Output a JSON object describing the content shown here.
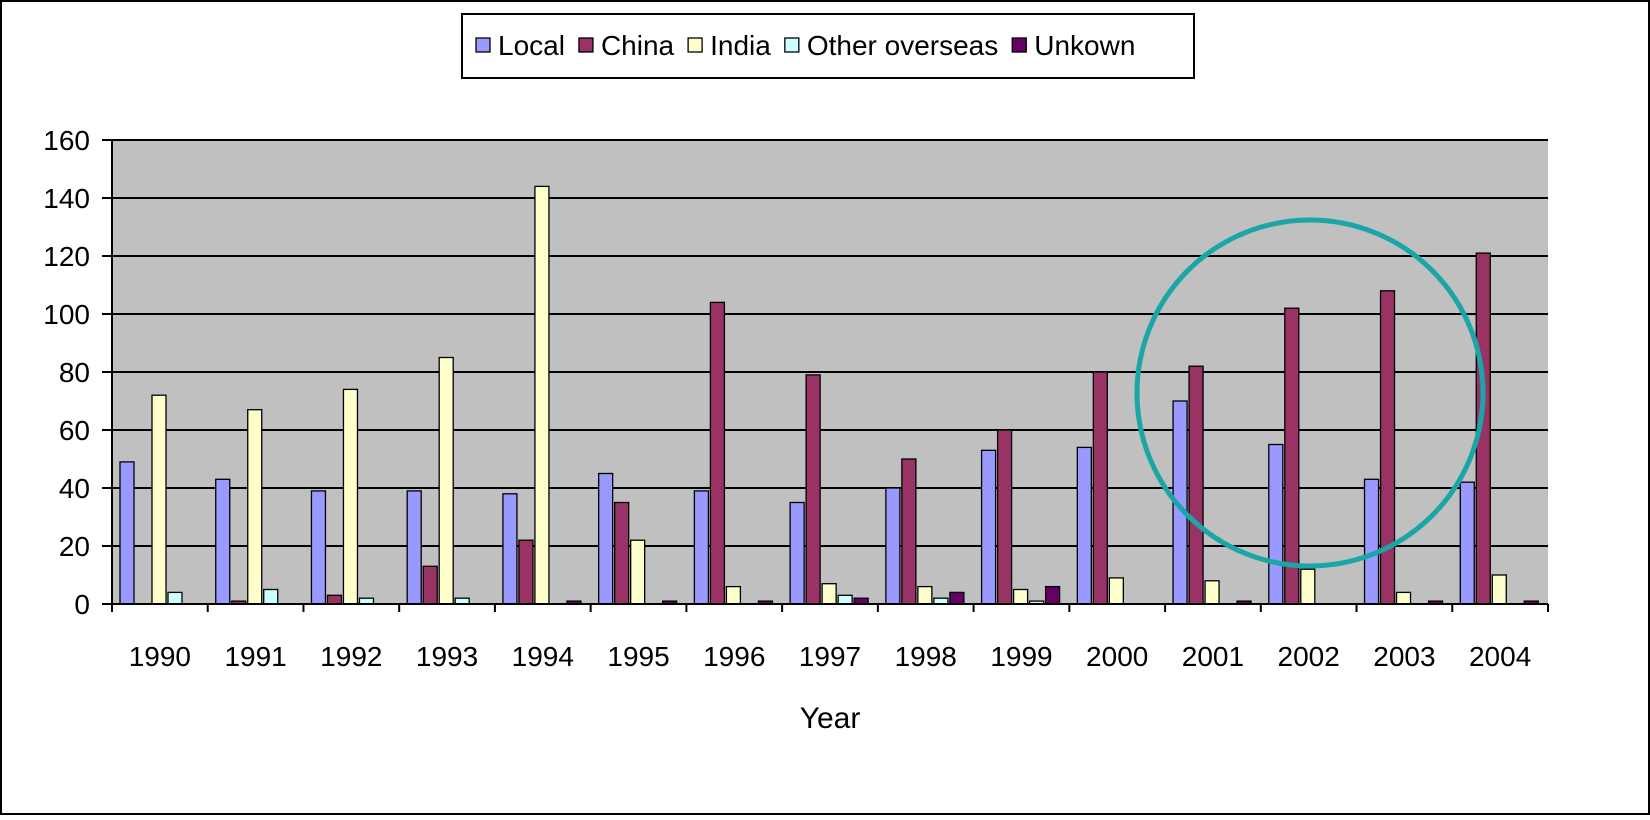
{
  "chart_data": {
    "type": "bar",
    "title": "",
    "xlabel": "Year",
    "ylabel": "",
    "ylim": [
      0,
      160
    ],
    "yticks": [
      0,
      20,
      40,
      60,
      80,
      100,
      120,
      140,
      160
    ],
    "grid": true,
    "legend_position": "top",
    "plot_background": "#c0c0c0",
    "categories": [
      "1990",
      "1991",
      "1992",
      "1993",
      "1994",
      "1995",
      "1996",
      "1997",
      "1998",
      "1999",
      "2000",
      "2001",
      "2002",
      "2003",
      "2004"
    ],
    "series": [
      {
        "name": "Local",
        "color": "#9999ff",
        "values": [
          49,
          43,
          39,
          39,
          38,
          45,
          39,
          35,
          40,
          53,
          54,
          70,
          55,
          43,
          42
        ]
      },
      {
        "name": "China",
        "color": "#993366",
        "values": [
          0,
          1,
          3,
          13,
          22,
          35,
          104,
          79,
          50,
          60,
          80,
          82,
          102,
          108,
          121
        ]
      },
      {
        "name": "India",
        "color": "#ffffcc",
        "values": [
          72,
          67,
          74,
          85,
          144,
          22,
          6,
          7,
          6,
          5,
          9,
          8,
          12,
          4,
          10
        ]
      },
      {
        "name": "Other overseas",
        "color": "#ccffff",
        "values": [
          4,
          5,
          2,
          2,
          0,
          0,
          0,
          3,
          2,
          1,
          0,
          0,
          0,
          0,
          0
        ]
      },
      {
        "name": "Unkown",
        "color": "#660066",
        "values": [
          0,
          0,
          0,
          0,
          1,
          1,
          1,
          2,
          4,
          6,
          0,
          1,
          0,
          1,
          1
        ]
      }
    ],
    "annotations": [
      {
        "type": "circle",
        "color": "#1aa6a6",
        "center_x": "2001.5",
        "center_y": 72,
        "note_categories": [
          "2001",
          "2002",
          "2003",
          "2004"
        ]
      }
    ]
  }
}
